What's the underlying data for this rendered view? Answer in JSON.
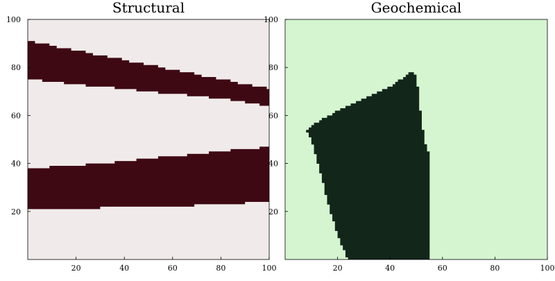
{
  "chart_data": [
    {
      "type": "heatmap",
      "title": "Structural",
      "xlabel": "",
      "ylabel": "",
      "xlim": [
        0,
        100
      ],
      "ylim": [
        0,
        100
      ],
      "x_ticks": [
        20,
        40,
        60,
        80,
        100
      ],
      "y_ticks": [
        20,
        40,
        60,
        80,
        100
      ],
      "grid": false,
      "background_color": "#f0ebea",
      "fill_color": "#3f0914",
      "regions": [
        {
          "shape": "band",
          "upper": [
            [
              0,
              91
            ],
            [
              20,
              87
            ],
            [
              40,
              83
            ],
            [
              60,
              79
            ],
            [
              80,
              75
            ],
            [
              100,
              71
            ]
          ],
          "lower": [
            [
              0,
              75
            ],
            [
              20,
              73
            ],
            [
              40,
              71
            ],
            [
              60,
              69
            ],
            [
              80,
              67
            ],
            [
              100,
              64
            ]
          ]
        },
        {
          "shape": "band",
          "upper": [
            [
              0,
              38
            ],
            [
              20,
              39
            ],
            [
              40,
              41
            ],
            [
              60,
              43
            ],
            [
              80,
              45
            ],
            [
              100,
              47
            ]
          ],
          "lower": [
            [
              0,
              21
            ],
            [
              20,
              21
            ],
            [
              40,
              22
            ],
            [
              60,
              22
            ],
            [
              80,
              23
            ],
            [
              100,
              24
            ]
          ]
        }
      ]
    },
    {
      "type": "heatmap",
      "title": "Geochemical",
      "xlabel": "",
      "ylabel": "",
      "xlim": [
        0,
        100
      ],
      "ylim": [
        0,
        100
      ],
      "x_ticks": [
        20,
        40,
        60,
        80,
        100
      ],
      "y_ticks": [
        20,
        40,
        60,
        80,
        100
      ],
      "grid": false,
      "background_color": "#d5f5d0",
      "fill_color": "#12261a",
      "regions": [
        {
          "shape": "polygon",
          "vertices": [
            [
              8,
              54
            ],
            [
              12,
              57
            ],
            [
              20,
              62
            ],
            [
              30,
              67
            ],
            [
              40,
              72
            ],
            [
              48,
              78
            ],
            [
              50,
              77
            ],
            [
              52,
              57
            ],
            [
              54,
              45
            ],
            [
              55,
              44
            ],
            [
              55,
              0
            ],
            [
              24,
              0
            ],
            [
              20,
              10
            ],
            [
              16,
              25
            ],
            [
              13,
              38
            ],
            [
              10,
              50
            ]
          ]
        }
      ]
    }
  ]
}
